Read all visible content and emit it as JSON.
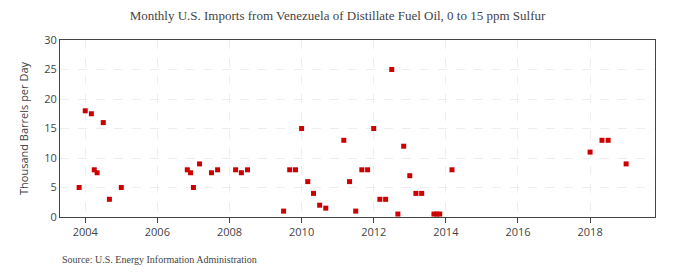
{
  "chart_data": {
    "type": "scatter",
    "title": "Monthly U.S. Imports from Venezuela of Distillate Fuel Oil, 0 to 15 ppm Sulfur",
    "ylabel": "Thousand Barrels per Day",
    "annotations": [
      "Source: U.S. Energy Information Administration"
    ],
    "color": "#cc0000",
    "marker": "square",
    "grid": true,
    "xlim": [
      2003.3,
      2019.8
    ],
    "ylim": [
      0,
      30
    ],
    "xticks": [
      2004,
      2006,
      2008,
      2010,
      2012,
      2014,
      2016,
      2018
    ],
    "yticks": [
      0,
      5,
      10,
      15,
      20,
      25,
      30
    ],
    "x": [
      2003.83,
      2004.0,
      2004.17,
      2004.25,
      2004.33,
      2004.5,
      2004.67,
      2005.0,
      2006.83,
      2006.92,
      2007.0,
      2007.17,
      2007.5,
      2007.67,
      2008.17,
      2008.33,
      2008.5,
      2009.5,
      2009.67,
      2009.83,
      2010.0,
      2010.17,
      2010.33,
      2010.5,
      2010.67,
      2011.17,
      2011.33,
      2011.5,
      2011.67,
      2011.83,
      2012.0,
      2012.17,
      2012.33,
      2012.5,
      2012.67,
      2012.83,
      2013.0,
      2013.17,
      2013.33,
      2013.67,
      2013.75,
      2013.83,
      2014.17,
      2018.0,
      2018.33,
      2018.5,
      2019.0
    ],
    "values": [
      5.0,
      18.0,
      17.5,
      8.0,
      7.5,
      16.0,
      3.0,
      5.0,
      8.0,
      7.5,
      5.0,
      9.0,
      7.5,
      8.0,
      8.0,
      7.5,
      8.0,
      1.0,
      8.0,
      8.0,
      15.0,
      6.0,
      4.0,
      2.0,
      1.5,
      13.0,
      6.0,
      1.0,
      8.0,
      8.0,
      15.0,
      3.0,
      3.0,
      25.0,
      0.5,
      12.0,
      7.0,
      4.0,
      4.0,
      0.5,
      0.5,
      0.5,
      8.0,
      11.0,
      13.0,
      13.0,
      9.0
    ]
  }
}
